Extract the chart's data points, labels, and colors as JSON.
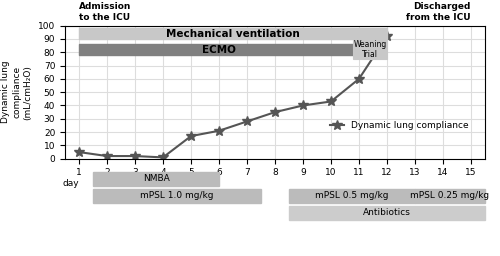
{
  "days": [
    1,
    2,
    3,
    4,
    5,
    6,
    7,
    8,
    9,
    10,
    11,
    12
  ],
  "compliance": [
    5,
    2,
    2,
    1,
    17,
    21,
    28,
    35,
    40,
    43,
    60,
    92
  ],
  "xlim": [
    0.5,
    15.5
  ],
  "ylim": [
    0,
    100
  ],
  "yticks": [
    0,
    10,
    20,
    30,
    40,
    50,
    60,
    70,
    80,
    90,
    100
  ],
  "xticks": [
    1,
    2,
    3,
    4,
    5,
    6,
    7,
    8,
    9,
    10,
    11,
    12,
    13,
    14,
    15
  ],
  "ylabel": "Dynamic lung\ncompliance\n(mL/cmH₂O)",
  "line_color": "#555555",
  "marker": "*",
  "marker_size": 7,
  "title_left": "Admission\nto the ICU",
  "title_right": "Discharged\nfrom the ICU",
  "mech_vent_bar": {
    "x_start": 1,
    "x_end": 12,
    "y": 90,
    "height": 8,
    "color": "#c8c8c8",
    "label": "Mechanical ventilation"
  },
  "ecmo_bar": {
    "x_start": 1,
    "x_end": 11,
    "y": 78,
    "height": 8,
    "color": "#808080",
    "label": "ECMO"
  },
  "weaning_box": {
    "x_start": 10.8,
    "x_end": 12,
    "y": 75,
    "height": 14,
    "color": "#c8c8c8",
    "label": "Weaning\nTrial"
  },
  "nmba_bar": {
    "x_start": 1.5,
    "x_end": 6,
    "y_below": 1,
    "height": 0.4,
    "color": "#aaaaaa",
    "label": "NMBA"
  },
  "mpsl1_bar": {
    "x_start": 1.5,
    "x_end": 7.5,
    "y_below": 2,
    "height": 0.4,
    "color": "#bbbbbb",
    "label": "mPSL 1.0 mg/kg"
  },
  "mpsl05_bar": {
    "x_start": 8.5,
    "x_end": 13,
    "y_below": 2,
    "color": "#bbbbbb",
    "label": "mPSL 0.5 mg/kg"
  },
  "mpsl025_bar": {
    "x_start": 13,
    "x_end": 15.5,
    "y_below": 2,
    "color": "#bbbbbb",
    "label": "mPSL 0.25 mg/kg"
  },
  "antibiotics_bar": {
    "x_start": 8.5,
    "x_end": 15.5,
    "y_below": 3,
    "color": "#cccccc",
    "label": "Antibiotics"
  },
  "legend_label": "Dynamic lung compliance",
  "grid_color": "#dddddd"
}
